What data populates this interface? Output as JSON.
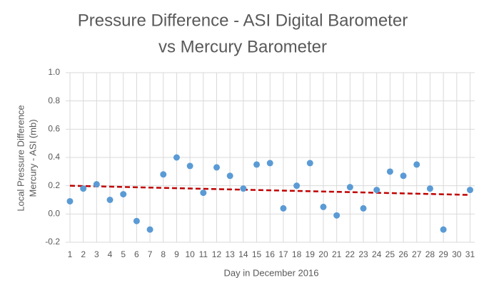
{
  "chart_data": {
    "type": "scatter",
    "title": [
      "Pressure Difference - ASI Digital Barometer",
      "vs Mercury Barometer"
    ],
    "x_label": "Day in December 2016",
    "y_label": [
      "Local Pressure Difference",
      "Mercury - ASI (mb)"
    ],
    "x": [
      1,
      2,
      3,
      4,
      5,
      6,
      7,
      8,
      9,
      10,
      11,
      12,
      13,
      14,
      15,
      16,
      17,
      18,
      19,
      20,
      21,
      22,
      23,
      24,
      25,
      26,
      27,
      28,
      29,
      30,
      31
    ],
    "series": [
      {
        "name": "Pressure Difference",
        "color": "#5b9bd5",
        "values": [
          0.09,
          0.18,
          0.21,
          0.1,
          0.14,
          -0.05,
          -0.11,
          0.28,
          0.4,
          0.34,
          0.15,
          0.33,
          0.27,
          0.18,
          0.35,
          0.36,
          0.04,
          0.2,
          0.36,
          0.05,
          -0.01,
          0.19,
          0.04,
          0.17,
          0.3,
          0.27,
          0.35,
          0.18,
          -0.11,
          null,
          0.17
        ]
      }
    ],
    "trendline": {
      "color": "#c00000",
      "x": [
        1,
        31
      ],
      "values": [
        0.2,
        0.135
      ]
    },
    "xlim": [
      0.68,
      31.35
    ],
    "xticks": [
      1,
      2,
      3,
      4,
      5,
      6,
      7,
      8,
      9,
      10,
      11,
      12,
      13,
      14,
      15,
      16,
      17,
      18,
      19,
      20,
      21,
      22,
      23,
      24,
      25,
      26,
      27,
      28,
      29,
      30,
      31
    ],
    "ylim": [
      -0.2,
      1.0
    ],
    "yticks": [
      {
        "value": 1.0,
        "label": "1.0"
      },
      0.8,
      0.6,
      0.4,
      0.2,
      {
        "value": 0,
        "label": "0.0"
      },
      -0.2
    ],
    "grid": true
  }
}
